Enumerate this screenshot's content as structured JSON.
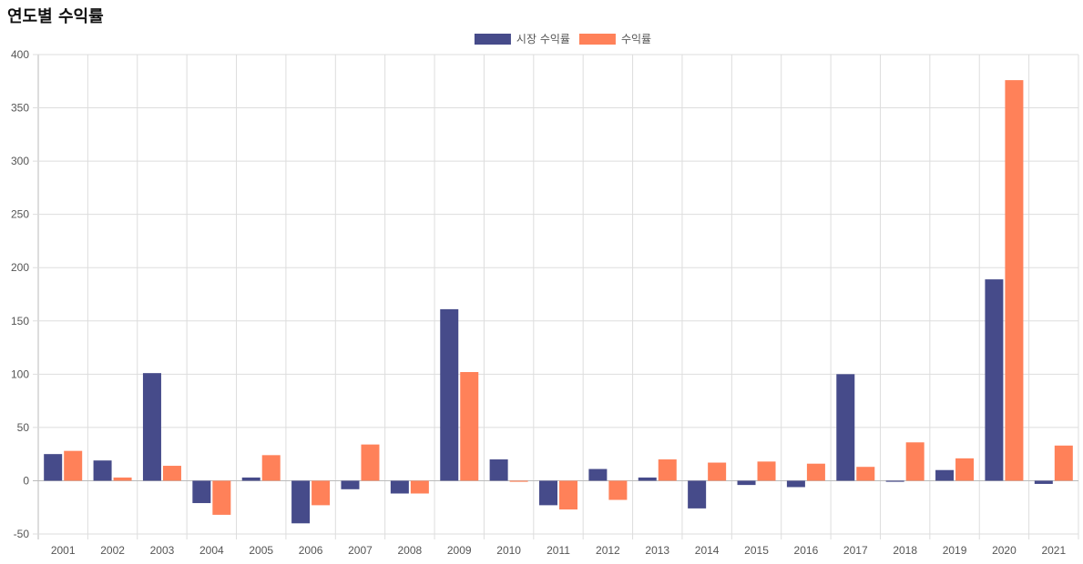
{
  "chart_title": "연도별 수익률",
  "colors": {
    "series1": "#464B8A",
    "series2": "#FF8159"
  },
  "chart_data": {
    "type": "bar",
    "title": "연도별 수익률",
    "xlabel": "",
    "ylabel": "",
    "ylim": [
      -50,
      400
    ],
    "yticks": [
      -50,
      0,
      50,
      100,
      150,
      200,
      250,
      300,
      350,
      400
    ],
    "grid": true,
    "legend": "top-center",
    "categories": [
      "2001",
      "2002",
      "2003",
      "2004",
      "2005",
      "2006",
      "2007",
      "2008",
      "2009",
      "2010",
      "2011",
      "2012",
      "2013",
      "2014",
      "2015",
      "2016",
      "2017",
      "2018",
      "2019",
      "2020",
      "2021"
    ],
    "series": [
      {
        "name": "시장 수익률",
        "color": "#464B8A",
        "values": [
          25,
          19,
          101,
          -21,
          3,
          -40,
          -8,
          -12,
          161,
          20,
          -23,
          11,
          3,
          -26,
          -4,
          -6,
          100,
          -1,
          10,
          189,
          -3
        ]
      },
      {
        "name": "수익률",
        "color": "#FF8159",
        "values": [
          28,
          3,
          14,
          -32,
          24,
          -23,
          34,
          -12,
          102,
          -1,
          -27,
          -18,
          20,
          17,
          18,
          16,
          13,
          36,
          21,
          376,
          33
        ]
      }
    ]
  }
}
